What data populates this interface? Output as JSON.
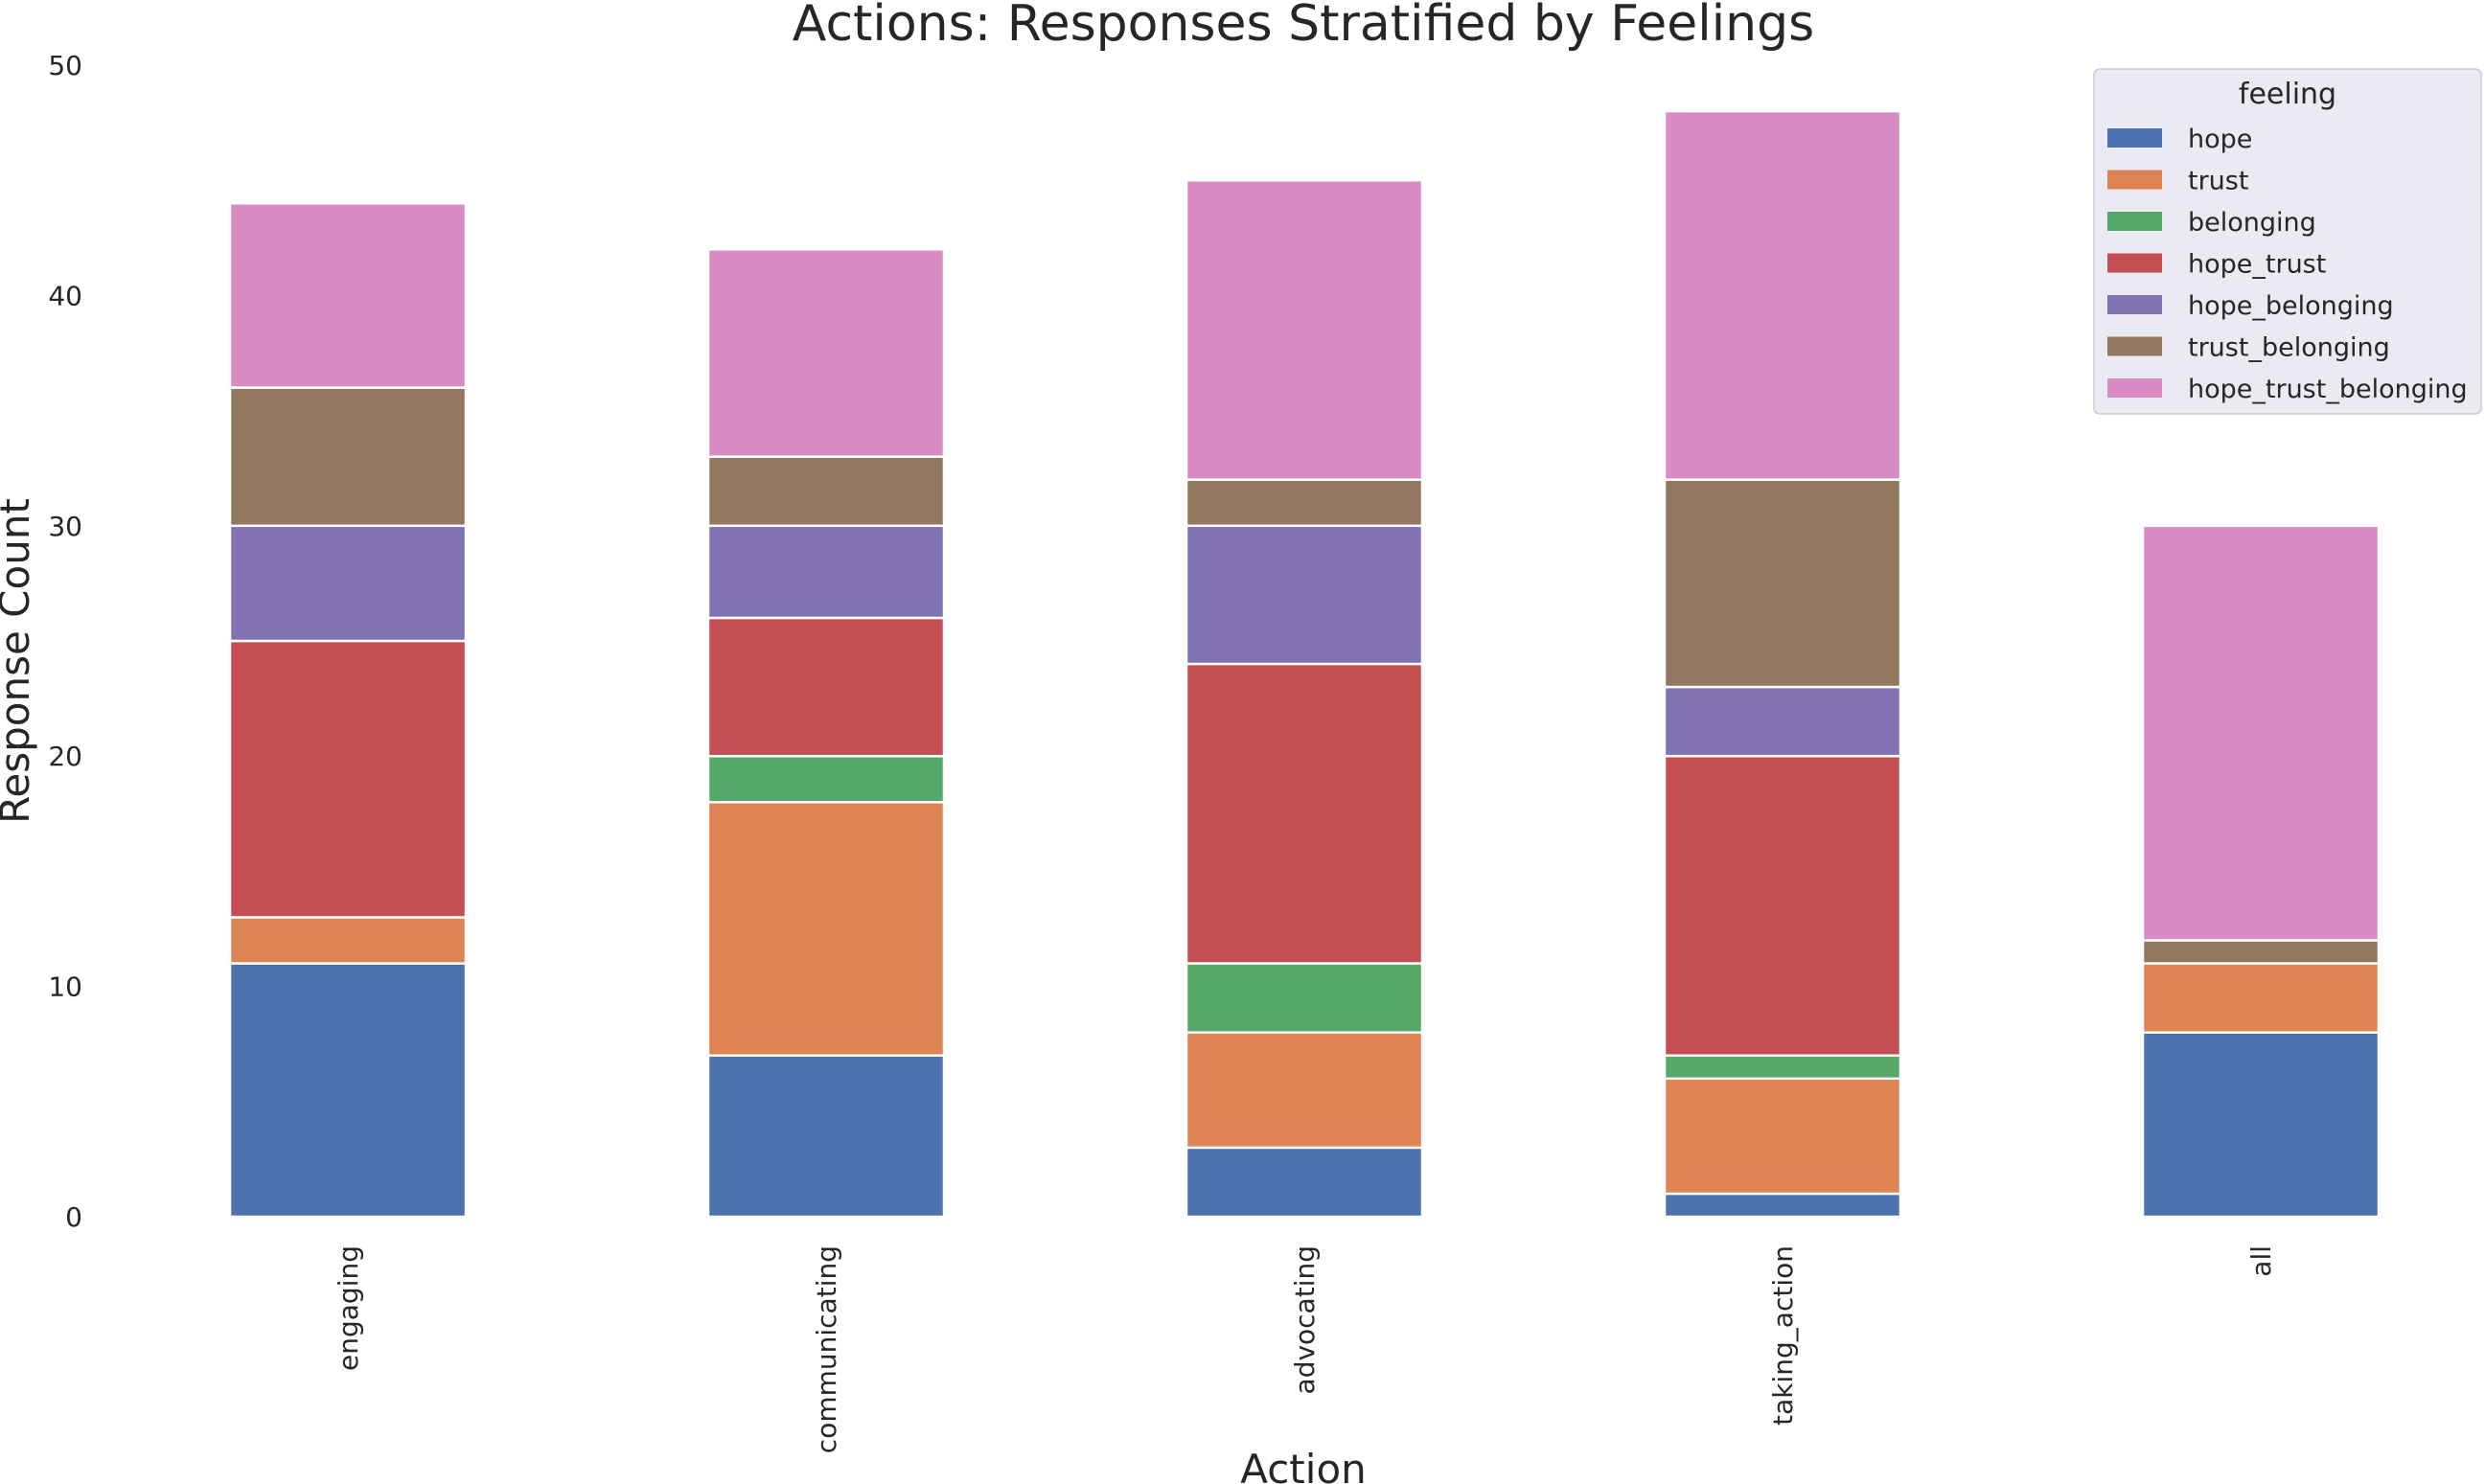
{
  "chart_data": {
    "type": "bar",
    "stacked": true,
    "title": "Actions: Responses Stratified by Feelings",
    "xlabel": "Action",
    "ylabel": "Response Count",
    "ylim": [
      0,
      50
    ],
    "yticks": [
      0,
      10,
      20,
      30,
      40,
      50
    ],
    "grid": false,
    "legend_title": "feeling",
    "legend_position": "top-right",
    "categories": [
      "engaging",
      "communicating",
      "advocating",
      "taking_action",
      "all"
    ],
    "series": [
      {
        "name": "hope",
        "color": "#4c72b0",
        "values": [
          11,
          7,
          3,
          1,
          8
        ]
      },
      {
        "name": "trust",
        "color": "#dd8452",
        "values": [
          2,
          11,
          5,
          5,
          3
        ]
      },
      {
        "name": "belonging",
        "color": "#55a868",
        "values": [
          0,
          2,
          3,
          1,
          0
        ]
      },
      {
        "name": "hope_trust",
        "color": "#c44e52",
        "values": [
          12,
          6,
          13,
          13,
          0
        ]
      },
      {
        "name": "hope_belonging",
        "color": "#8172b3",
        "values": [
          5,
          4,
          6,
          3,
          0
        ]
      },
      {
        "name": "trust_belonging",
        "color": "#937860",
        "values": [
          6,
          3,
          2,
          9,
          1
        ]
      },
      {
        "name": "hope_trust_belonging",
        "color": "#da8bc3",
        "values": [
          8,
          9,
          13,
          16,
          18
        ]
      }
    ]
  }
}
